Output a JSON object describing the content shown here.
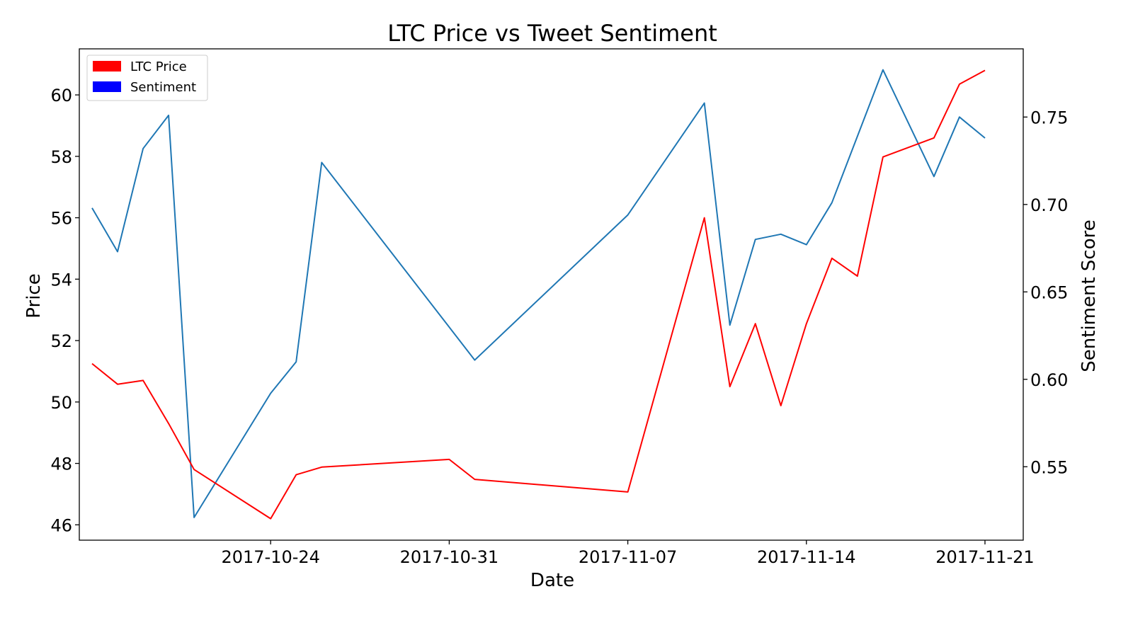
{
  "chart_data": {
    "type": "line",
    "title": "LTC Price vs Tweet Sentiment",
    "xlabel": "Date",
    "ylabel": "Price",
    "y2label": "Sentiment Score",
    "x_ticks": [
      "2017-10-24",
      "2017-10-31",
      "2017-11-07",
      "2017-11-14",
      "2017-11-21"
    ],
    "y_ticks": [
      46,
      48,
      50,
      52,
      54,
      56,
      58,
      60
    ],
    "y_ticks_labels": [
      "46",
      "48",
      "50",
      "52",
      "54",
      "56",
      "58",
      "60"
    ],
    "y2_ticks": [
      0.55,
      0.6,
      0.65,
      0.7,
      0.75
    ],
    "y2_ticks_labels": [
      "0.55",
      "0.60",
      "0.65",
      "0.70",
      "0.75"
    ],
    "xlim": [
      "2017-10-16T12:00",
      "2017-11-22T12:00"
    ],
    "ylim": [
      45.5,
      61.5
    ],
    "y2lim": [
      0.508,
      0.789
    ],
    "grid": false,
    "legend_position": "top-left",
    "legend": [
      "LTC Price",
      "Sentiment"
    ],
    "series": [
      {
        "name": "LTC Price",
        "axis": "left",
        "color": "#ff0000",
        "x": [
          "2017-10-17",
          "2017-10-18",
          "2017-10-19",
          "2017-10-20",
          "2017-10-21",
          "2017-10-24",
          "2017-10-25",
          "2017-10-26",
          "2017-10-31",
          "2017-11-01",
          "2017-11-07",
          "2017-11-10",
          "2017-11-11",
          "2017-11-12",
          "2017-11-13",
          "2017-11-14",
          "2017-11-15",
          "2017-11-16",
          "2017-11-17",
          "2017-11-19",
          "2017-11-20",
          "2017-11-21"
        ],
        "values": [
          51.25,
          50.58,
          50.7,
          49.3,
          47.8,
          46.2,
          47.63,
          47.88,
          48.13,
          47.48,
          47.07,
          56.0,
          50.5,
          52.55,
          49.88,
          52.55,
          54.68,
          54.1,
          57.98,
          58.6,
          60.35,
          60.8
        ]
      },
      {
        "name": "Sentiment",
        "legend_color": "#0000ff",
        "axis": "right",
        "color": "#1f77b4",
        "x": [
          "2017-10-17",
          "2017-10-18",
          "2017-10-19",
          "2017-10-20",
          "2017-10-21",
          "2017-10-24",
          "2017-10-25",
          "2017-10-26",
          "2017-10-31",
          "2017-11-01",
          "2017-11-07",
          "2017-11-10",
          "2017-11-11",
          "2017-11-12",
          "2017-11-13",
          "2017-11-14",
          "2017-11-15",
          "2017-11-16",
          "2017-11-17",
          "2017-11-19",
          "2017-11-20",
          "2017-11-21"
        ],
        "values": [
          0.698,
          0.673,
          0.732,
          0.751,
          0.521,
          0.592,
          0.61,
          0.724,
          null,
          0.611,
          0.694,
          0.758,
          0.631,
          0.68,
          0.683,
          0.677,
          0.701,
          null,
          0.777,
          0.716,
          0.75,
          0.738
        ]
      }
    ]
  }
}
